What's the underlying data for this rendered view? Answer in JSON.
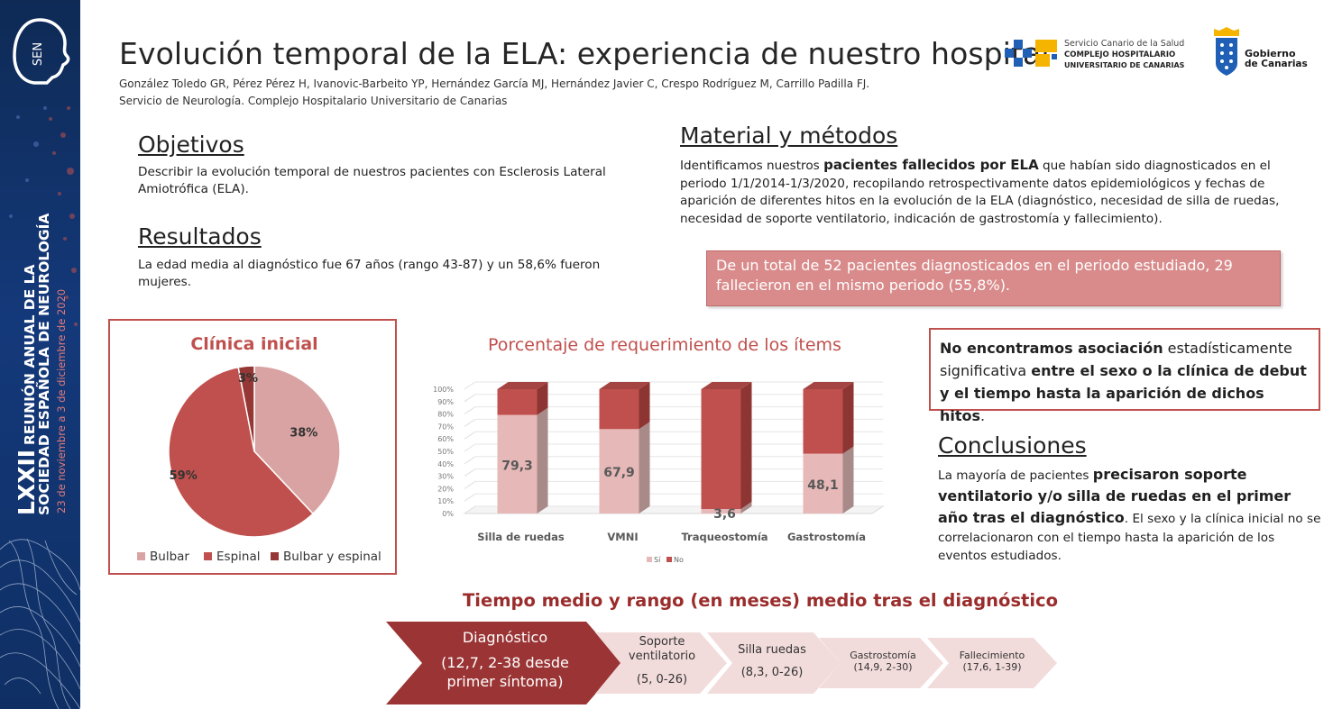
{
  "banner": {
    "sen": "SEN",
    "line1_roman": "LXXII",
    "line1": "REUNIÓN ANUAL DE LA",
    "line2": "SOCIEDAD ESPAÑOLA DE NEUROLOGÍA",
    "line3": "23 de noviembre a 3 de diciembre de 2020"
  },
  "header": {
    "title": "Evolución temporal de la ELA: experiencia de nuestro hospital",
    "authors": "González Toledo GR, Pérez Pérez H, Ivanovic-Barbeito YP, Hernández García MJ, Hernández Javier C, Crespo Rodríguez M, Carrillo Padilla FJ.",
    "affiliation": "Servicio de Neurología. Complejo Hospitalario Universitario de Canarias"
  },
  "logos": {
    "sc_line1": "Servicio Canario de la Salud",
    "sc_line2": "COMPLEJO HOSPITALARIO",
    "sc_line3": "UNIVERSITARIO DE CANARIAS",
    "gob_line1": "Gobierno",
    "gob_line2": "de Canarias"
  },
  "objetivos": {
    "heading": "Objetivos",
    "text": "Describir la evolución temporal de nuestros pacientes con Esclerosis Lateral Amiotrófica (ELA)."
  },
  "resultados": {
    "heading": "Resultados",
    "text": "La edad media al diagnóstico fue 67 años (rango 43-87) y un 58,6% fueron mujeres."
  },
  "material": {
    "heading": "Material y métodos",
    "pre": "Identificamos nuestros ",
    "bold": "pacientes fallecidos por ELA",
    "post": " que habían sido diagnosticados en el periodo 1/1/2014-1/3/2020, recopilando retrospectivamente datos epidemiológicos y fechas de aparición de diferentes hitos en la evolución de la ELA (diagnóstico, necesidad de silla de ruedas, necesidad de soporte ventilatorio, indicación de gastrostomía y fallecimiento)."
  },
  "highlight": "De un total de 52 pacientes diagnosticados en el periodo estudiado, 29 fallecieron en el mismo periodo (55,8%).",
  "association": {
    "b1": "No encontramos asociación",
    "t1": " estadísticamente significativa ",
    "b2": "entre el sexo o la clínica de debut y el tiempo hasta la aparición de dichos hitos",
    "t2": "."
  },
  "conclusiones": {
    "heading": "Conclusiones",
    "t1": "La mayoría de pacientes ",
    "b1": "precisaron soporte ventilatorio y/o silla de ruedas en el primer año tras el diagnóstico",
    "t2": ". El sexo y la clínica inicial no se correlacionaron con el tiempo hasta la aparición de los eventos estudiados."
  },
  "colors": {
    "accent": "#c0504d",
    "dark_red": "#9b2c2c",
    "pink": "#e6b8b7",
    "banner": "#14397a"
  },
  "chart_data": [
    {
      "type": "pie",
      "title": "Clínica inicial",
      "categories": [
        "Bulbar",
        "Espinal",
        "Bulbar y espinal"
      ],
      "values": [
        38,
        59,
        3
      ],
      "labels": [
        "38%",
        "59%",
        "3%"
      ],
      "colors": [
        "#d9a3a3",
        "#c0504d",
        "#953735"
      ],
      "legend": "bottom"
    },
    {
      "type": "bar",
      "stacked": true,
      "title": "Porcentaje de requerimiento de los ítems",
      "categories": [
        "Silla de ruedas",
        "VMNI",
        "Traqueostomía",
        "Gastrostomía"
      ],
      "series": [
        {
          "name": "Sí",
          "values": [
            79.3,
            67.9,
            3.6,
            48.1
          ],
          "labels": [
            "79,3",
            "67,9",
            "3,6",
            "48,1"
          ]
        },
        {
          "name": "No",
          "values": [
            20.7,
            32.1,
            96.4,
            51.9
          ]
        }
      ],
      "yticks": [
        "0%",
        "10%",
        "20%",
        "30%",
        "40%",
        "50%",
        "60%",
        "70%",
        "80%",
        "90%",
        "100%"
      ],
      "ylim": [
        0,
        100
      ],
      "legend": "bottom",
      "colors": [
        "#e6b8b7",
        "#c0504d"
      ]
    }
  ],
  "timeline": {
    "title": "Tiempo medio y rango (en meses) medio tras el diagnóstico",
    "steps": [
      {
        "name": "Diagnóstico",
        "detail": "(12,7, 2-38 desde primer síntoma)"
      },
      {
        "name": "Soporte ventilatorio",
        "detail": "(5, 0-26)"
      },
      {
        "name": "Silla ruedas",
        "detail": "(8,3, 0-26)"
      },
      {
        "name": "Gastrostomía",
        "detail": "(14,9, 2-30)"
      },
      {
        "name": "Fallecimiento",
        "detail": "(17,6, 1-39)"
      }
    ]
  }
}
